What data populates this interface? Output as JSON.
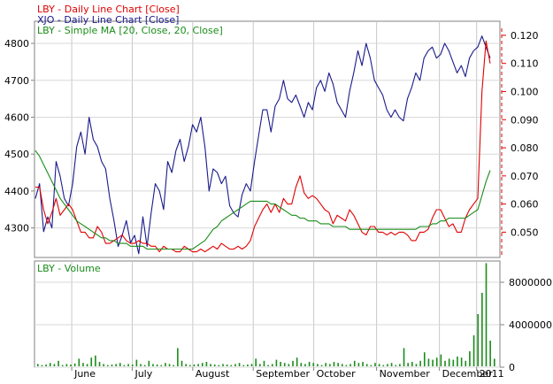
{
  "chart_data": [
    {
      "type": "line",
      "legend": [
        {
          "label": "LBY - Daily Line Chart [Close]",
          "color": "#e00000"
        },
        {
          "label": "XJO - Daily Line Chart [Close]",
          "color": "#1a1a8c"
        },
        {
          "label": "LBY - Simple MA [20, Close, 20, Close]",
          "color": "#1a8c1a"
        }
      ],
      "x_labels": [
        "June",
        "July",
        "August",
        "September",
        "October",
        "November",
        "December",
        "2011"
      ],
      "x_label_positions": [
        0.08,
        0.21,
        0.34,
        0.47,
        0.6,
        0.735,
        0.87,
        0.95
      ],
      "left_axis": {
        "ticks": [
          "4300",
          "4400",
          "4500",
          "4600",
          "4700",
          "4800"
        ],
        "ylim": [
          4220,
          4860
        ]
      },
      "right_axis": {
        "ticks": [
          "0.050",
          "0.060",
          "0.070",
          "0.080",
          "0.090",
          "0.100",
          "0.110",
          "0.120"
        ],
        "ylim": [
          0.041,
          0.125
        ]
      },
      "series": [
        {
          "name": "XJO - Daily Line Chart [Close]",
          "color": "#1a1a8c",
          "axis": "left",
          "values": [
            4380,
            4420,
            4290,
            4330,
            4300,
            4480,
            4440,
            4380,
            4360,
            4420,
            4520,
            4560,
            4500,
            4600,
            4540,
            4520,
            4480,
            4460,
            4380,
            4320,
            4250,
            4280,
            4320,
            4260,
            4280,
            4230,
            4330,
            4250,
            4340,
            4420,
            4400,
            4350,
            4480,
            4450,
            4510,
            4540,
            4480,
            4520,
            4580,
            4560,
            4600,
            4520,
            4400,
            4460,
            4450,
            4420,
            4440,
            4360,
            4340,
            4330,
            4390,
            4420,
            4400,
            4480,
            4550,
            4620,
            4620,
            4560,
            4630,
            4650,
            4700,
            4650,
            4640,
            4660,
            4630,
            4600,
            4640,
            4620,
            4680,
            4700,
            4670,
            4720,
            4690,
            4640,
            4620,
            4600,
            4670,
            4720,
            4780,
            4740,
            4800,
            4760,
            4700,
            4680,
            4660,
            4620,
            4600,
            4620,
            4600,
            4590,
            4650,
            4680,
            4720,
            4700,
            4760,
            4780,
            4790,
            4760,
            4770,
            4800,
            4780,
            4750,
            4720,
            4740,
            4710,
            4760,
            4780,
            4790,
            4820,
            4790,
            4760
          ]
        },
        {
          "name": "LBY - Daily Line Chart [Close]",
          "color": "#e00000",
          "axis": "right",
          "values": [
            0.066,
            0.066,
            0.058,
            0.053,
            0.057,
            0.062,
            0.056,
            0.058,
            0.06,
            0.058,
            0.054,
            0.05,
            0.05,
            0.048,
            0.048,
            0.052,
            0.05,
            0.046,
            0.046,
            0.047,
            0.048,
            0.049,
            0.047,
            0.046,
            0.046,
            0.047,
            0.046,
            0.046,
            0.045,
            0.045,
            0.043,
            0.045,
            0.044,
            0.044,
            0.043,
            0.043,
            0.045,
            0.044,
            0.043,
            0.043,
            0.044,
            0.043,
            0.044,
            0.045,
            0.044,
            0.046,
            0.045,
            0.044,
            0.044,
            0.045,
            0.044,
            0.045,
            0.047,
            0.052,
            0.055,
            0.058,
            0.06,
            0.057,
            0.06,
            0.057,
            0.062,
            0.06,
            0.06,
            0.066,
            0.07,
            0.064,
            0.062,
            0.063,
            0.062,
            0.06,
            0.058,
            0.057,
            0.053,
            0.056,
            0.055,
            0.054,
            0.058,
            0.056,
            0.053,
            0.05,
            0.049,
            0.052,
            0.052,
            0.05,
            0.05,
            0.049,
            0.05,
            0.049,
            0.05,
            0.05,
            0.049,
            0.047,
            0.047,
            0.05,
            0.05,
            0.051,
            0.055,
            0.058,
            0.058,
            0.055,
            0.052,
            0.053,
            0.05,
            0.05,
            0.055,
            0.058,
            0.06,
            0.062,
            0.1,
            0.118,
            0.11
          ]
        },
        {
          "name": "LBY - Simple MA [20, Close, 20, Close]",
          "color": "#1a8c1a",
          "axis": "right",
          "values": [
            0.079,
            0.077,
            0.074,
            0.071,
            0.068,
            0.065,
            0.062,
            0.06,
            0.058,
            0.056,
            0.054,
            0.053,
            0.052,
            0.051,
            0.05,
            0.049,
            0.048,
            0.048,
            0.047,
            0.047,
            0.046,
            0.046,
            0.046,
            0.045,
            0.045,
            0.045,
            0.045,
            0.044,
            0.044,
            0.044,
            0.044,
            0.044,
            0.044,
            0.044,
            0.044,
            0.044,
            0.044,
            0.044,
            0.044,
            0.045,
            0.046,
            0.047,
            0.049,
            0.051,
            0.052,
            0.054,
            0.055,
            0.056,
            0.057,
            0.058,
            0.059,
            0.06,
            0.061,
            0.061,
            0.061,
            0.061,
            0.061,
            0.06,
            0.06,
            0.059,
            0.058,
            0.057,
            0.056,
            0.056,
            0.055,
            0.055,
            0.054,
            0.054,
            0.054,
            0.053,
            0.053,
            0.053,
            0.052,
            0.052,
            0.052,
            0.052,
            0.051,
            0.051,
            0.051,
            0.051,
            0.051,
            0.051,
            0.051,
            0.051,
            0.051,
            0.051,
            0.051,
            0.051,
            0.051,
            0.051,
            0.051,
            0.051,
            0.051,
            0.052,
            0.052,
            0.052,
            0.053,
            0.053,
            0.054,
            0.054,
            0.055,
            0.055,
            0.055,
            0.055,
            0.055,
            0.056,
            0.057,
            0.058,
            0.063,
            0.068,
            0.072
          ]
        }
      ],
      "grid": true
    },
    {
      "type": "bar",
      "legend": [
        {
          "label": "LBY - Volume",
          "color": "#1a8c1a"
        }
      ],
      "right_axis": {
        "ticks": [
          "0",
          "4000000",
          "8000000"
        ],
        "ylim": [
          0,
          10000000
        ]
      },
      "values": [
        300000,
        200000,
        250000,
        400000,
        300000,
        600000,
        200000,
        300000,
        250000,
        350000,
        800000,
        400000,
        300000,
        900000,
        1100000,
        500000,
        300000,
        200000,
        250000,
        300000,
        400000,
        200000,
        300000,
        250000,
        700000,
        300000,
        200000,
        600000,
        300000,
        250000,
        200000,
        400000,
        300000,
        200000,
        1800000,
        600000,
        300000,
        200000,
        250000,
        300000,
        400000,
        500000,
        300000,
        250000,
        200000,
        300000,
        250000,
        200000,
        300000,
        400000,
        200000,
        250000,
        300000,
        800000,
        300000,
        600000,
        200000,
        300000,
        700000,
        500000,
        400000,
        300000,
        600000,
        900000,
        400000,
        300000,
        500000,
        400000,
        300000,
        200000,
        400000,
        300000,
        500000,
        400000,
        300000,
        200000,
        300000,
        600000,
        400000,
        500000,
        300000,
        200000,
        400000,
        300000,
        200000,
        300000,
        400000,
        200000,
        300000,
        1800000,
        400000,
        500000,
        300000,
        600000,
        1400000,
        800000,
        700000,
        900000,
        1200000,
        600000,
        800000,
        700000,
        1000000,
        900000,
        600000,
        1500000,
        3000000,
        5000000,
        7000000,
        9800000,
        2500000,
        800000
      ],
      "grid": true
    }
  ]
}
